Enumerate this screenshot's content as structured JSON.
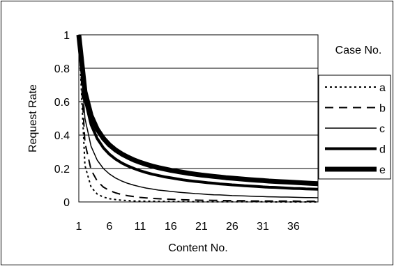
{
  "chart_data": {
    "type": "line",
    "title": "",
    "xlabel": "Content No.",
    "ylabel": "Request Rate",
    "x_tick_labels": [
      "1",
      "6",
      "11",
      "16",
      "21",
      "26",
      "31",
      "36"
    ],
    "y_tick_labels": [
      "0",
      "0.2",
      "0.4",
      "0.6",
      "0.8",
      "1"
    ],
    "xlim": [
      1,
      40
    ],
    "ylim": [
      0,
      1
    ],
    "grid": "horizontal",
    "legend_title": "Case No.",
    "legend_placement": "right",
    "x": [
      1,
      2,
      3,
      4,
      5,
      6,
      7,
      8,
      9,
      10,
      11,
      12,
      13,
      14,
      15,
      16,
      17,
      18,
      19,
      20,
      21,
      22,
      23,
      24,
      25,
      26,
      27,
      28,
      29,
      30,
      31,
      32,
      33,
      34,
      35,
      36,
      37,
      38,
      39,
      40
    ],
    "series": [
      {
        "name": "a",
        "style": "dotted",
        "exponent": 2.2,
        "values": [
          1.0,
          0.218,
          0.089,
          0.047,
          0.029,
          0.019,
          0.014,
          0.01,
          0.008,
          0.006,
          0.005,
          0.004,
          0.004,
          0.003,
          0.003,
          0.002,
          0.002,
          0.002,
          0.002,
          0.001,
          0.001,
          0.001,
          0.001,
          0.001,
          0.001,
          0.001,
          0.001,
          0.001,
          0.001,
          0.001,
          0.001,
          0.0,
          0.0,
          0.0,
          0.0,
          0.0,
          0.0,
          0.0,
          0.0,
          0.0
        ]
      },
      {
        "name": "b",
        "style": "dashed",
        "exponent": 1.5,
        "values": [
          1.0,
          0.354,
          0.192,
          0.125,
          0.089,
          0.068,
          0.054,
          0.044,
          0.037,
          0.032,
          0.027,
          0.024,
          0.021,
          0.019,
          0.017,
          0.016,
          0.014,
          0.013,
          0.012,
          0.011,
          0.01,
          0.01,
          0.009,
          0.009,
          0.008,
          0.008,
          0.007,
          0.007,
          0.006,
          0.006,
          0.006,
          0.006,
          0.005,
          0.005,
          0.005,
          0.005,
          0.004,
          0.004,
          0.004,
          0.004
        ]
      },
      {
        "name": "c",
        "style": "thin",
        "exponent": 1.0,
        "values": [
          1.0,
          0.5,
          0.333,
          0.25,
          0.2,
          0.167,
          0.143,
          0.125,
          0.111,
          0.1,
          0.091,
          0.083,
          0.077,
          0.071,
          0.067,
          0.063,
          0.059,
          0.056,
          0.053,
          0.05,
          0.048,
          0.045,
          0.043,
          0.042,
          0.04,
          0.038,
          0.037,
          0.036,
          0.034,
          0.033,
          0.032,
          0.031,
          0.03,
          0.029,
          0.029,
          0.028,
          0.027,
          0.026,
          0.026,
          0.025
        ]
      },
      {
        "name": "d",
        "style": "thick",
        "exponent": 0.7,
        "values": [
          1.0,
          0.616,
          0.463,
          0.379,
          0.324,
          0.285,
          0.256,
          0.233,
          0.215,
          0.2,
          0.187,
          0.176,
          0.166,
          0.158,
          0.15,
          0.144,
          0.138,
          0.132,
          0.127,
          0.123,
          0.119,
          0.115,
          0.112,
          0.108,
          0.105,
          0.102,
          0.1,
          0.097,
          0.095,
          0.093,
          0.09,
          0.088,
          0.087,
          0.085,
          0.083,
          0.081,
          0.08,
          0.078,
          0.077,
          0.076
        ]
      },
      {
        "name": "e",
        "style": "heavy",
        "exponent": 0.6,
        "values": [
          1.0,
          0.66,
          0.517,
          0.435,
          0.381,
          0.341,
          0.311,
          0.287,
          0.268,
          0.251,
          0.237,
          0.225,
          0.214,
          0.205,
          0.197,
          0.189,
          0.183,
          0.177,
          0.171,
          0.166,
          0.161,
          0.157,
          0.153,
          0.149,
          0.145,
          0.142,
          0.139,
          0.136,
          0.133,
          0.13,
          0.128,
          0.125,
          0.123,
          0.121,
          0.119,
          0.117,
          0.115,
          0.113,
          0.111,
          0.109
        ]
      }
    ]
  }
}
